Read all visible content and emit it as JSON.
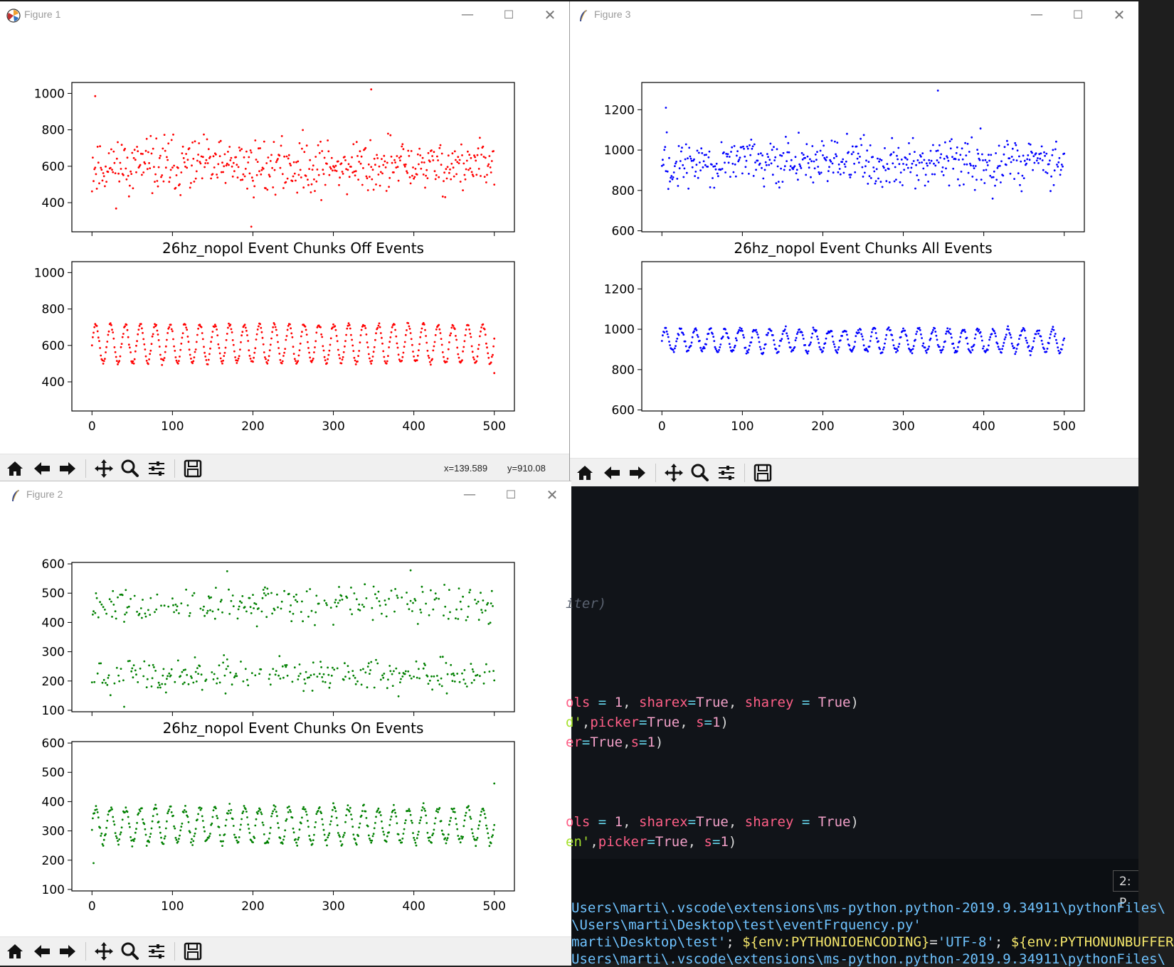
{
  "figures": [
    {
      "id": "fig1",
      "window_title": "Figure 1",
      "title_icon": "matplotlib-logo-icon",
      "color": "#ff0000",
      "plot_title": "26hz_nopol Event Chunks Off Events",
      "coords": {
        "x": "x=139.589",
        "y": "y=910.08"
      },
      "chart_data": {
        "type": "scatter",
        "title": "26hz_nopol Event Chunks Off Events",
        "xlim": [
          -25,
          525
        ],
        "xticks": [
          0,
          100,
          200,
          300,
          400,
          500
        ],
        "subplots": [
          {
            "name": "raw",
            "ylim": [
              240,
              1060
            ],
            "yticks": [
              400,
              600,
              800,
              1000
            ],
            "generator": {
              "kind": "noise",
              "n": 500,
              "center": 600,
              "spread": 150,
              "min": 300,
              "max": 990,
              "seed": 11
            },
            "highlights": [
              {
                "x": 347,
                "y": 1022
              },
              {
                "x": 4,
                "y": 985
              },
              {
                "x": 198,
                "y": 268
              }
            ]
          },
          {
            "name": "smoothed",
            "ylim": [
              240,
              1060
            ],
            "yticks": [
              400,
              600,
              800,
              1000
            ],
            "generator": {
              "kind": "wave",
              "n": 500,
              "center": 610,
              "amp": 105,
              "period": 18.5,
              "jitter": 12,
              "seed": 21
            },
            "highlights": [
              {
                "x": 500,
                "y": 448
              }
            ]
          }
        ]
      }
    },
    {
      "id": "fig3",
      "window_title": "Figure 3",
      "title_icon": "tk-feather-icon",
      "color": "#0000ff",
      "plot_title": "26hz_nopol Event Chunks All Events",
      "chart_data": {
        "type": "scatter",
        "title": "26hz_nopol Event Chunks All Events",
        "xlim": [
          -25,
          525
        ],
        "xticks": [
          0,
          100,
          200,
          300,
          400,
          500
        ],
        "subplots": [
          {
            "name": "raw",
            "ylim": [
              595,
              1335
            ],
            "yticks": [
              600,
              800,
              1000,
              1200
            ],
            "generator": {
              "kind": "noise",
              "n": 500,
              "center": 940,
              "spread": 120,
              "min": 620,
              "max": 1250,
              "seed": 33
            },
            "highlights": [
              {
                "x": 343,
                "y": 1295
              },
              {
                "x": 5,
                "y": 1210
              }
            ]
          },
          {
            "name": "smoothed",
            "ylim": [
              595,
              1335
            ],
            "yticks": [
              600,
              800,
              1000,
              1200
            ],
            "generator": {
              "kind": "wave",
              "n": 500,
              "center": 945,
              "amp": 55,
              "period": 18.5,
              "jitter": 15,
              "seed": 44
            },
            "highlights": []
          }
        ]
      }
    },
    {
      "id": "fig2",
      "window_title": "Figure 2",
      "title_icon": "tk-feather-icon",
      "color": "#008000",
      "plot_title": "26hz_nopol Event Chunks On Events",
      "chart_data": {
        "type": "scatter",
        "title": "26hz_nopol Event Chunks On Events",
        "xlim": [
          -25,
          525
        ],
        "xticks": [
          0,
          100,
          200,
          300,
          400,
          500
        ],
        "subplots": [
          {
            "name": "raw",
            "ylim": [
              95,
              605
            ],
            "yticks": [
              100,
              200,
              300,
              400,
              500,
              600
            ],
            "generator": {
              "kind": "bimodal",
              "n": 500,
              "low": 220,
              "high": 460,
              "spread": 55,
              "min": 115,
              "max": 560,
              "seed": 55
            },
            "highlights": [
              {
                "x": 168,
                "y": 575
              },
              {
                "x": 396,
                "y": 578
              },
              {
                "x": 40,
                "y": 112
              }
            ]
          },
          {
            "name": "smoothed",
            "ylim": [
              95,
              605
            ],
            "yticks": [
              100,
              200,
              300,
              400,
              500,
              600
            ],
            "generator": {
              "kind": "wave",
              "n": 500,
              "center": 320,
              "amp": 60,
              "period": 18.5,
              "jitter": 14,
              "seed": 66
            },
            "highlights": [
              {
                "x": 500,
                "y": 462
              },
              {
                "x": 2,
                "y": 190
              }
            ]
          }
        ]
      }
    }
  ],
  "editor": {
    "lines": [
      {
        "parts": [
          {
            "t": "iter)",
            "c": "cm"
          }
        ]
      },
      {
        "parts": [
          {
            "t": "ols ",
            "c": "kw"
          },
          {
            "t": "= ",
            "c": "op"
          },
          {
            "t": "1",
            "c": "val"
          },
          {
            "t": ", ",
            "c": ""
          },
          {
            "t": "sharex",
            "c": "kw"
          },
          {
            "t": "=",
            "c": "op"
          },
          {
            "t": "True",
            "c": "val"
          },
          {
            "t": ", ",
            "c": ""
          },
          {
            "t": "sharey ",
            "c": "kw"
          },
          {
            "t": "= ",
            "c": "op"
          },
          {
            "t": "True",
            "c": "val"
          },
          {
            "t": ")",
            "c": ""
          }
        ]
      },
      {
        "parts": [
          {
            "t": "d'",
            "c": "strg"
          },
          {
            "t": ",",
            "c": ""
          },
          {
            "t": "picker",
            "c": "kw"
          },
          {
            "t": "=",
            "c": "op"
          },
          {
            "t": "True",
            "c": "val"
          },
          {
            "t": ", ",
            "c": ""
          },
          {
            "t": "s",
            "c": "kw"
          },
          {
            "t": "=",
            "c": "op"
          },
          {
            "t": "1",
            "c": "val"
          },
          {
            "t": ")",
            "c": ""
          }
        ]
      },
      {
        "parts": [
          {
            "t": "er",
            "c": "kw"
          },
          {
            "t": "=",
            "c": "op"
          },
          {
            "t": "True",
            "c": "val"
          },
          {
            "t": ",",
            "c": ""
          },
          {
            "t": "s",
            "c": "kw"
          },
          {
            "t": "=",
            "c": "op"
          },
          {
            "t": "1",
            "c": "val"
          },
          {
            "t": ")",
            "c": ""
          }
        ]
      },
      {
        "parts": [
          {
            "t": "ols ",
            "c": "kw"
          },
          {
            "t": "= ",
            "c": "op"
          },
          {
            "t": "1",
            "c": "val"
          },
          {
            "t": ", ",
            "c": ""
          },
          {
            "t": "sharex",
            "c": "kw"
          },
          {
            "t": "=",
            "c": "op"
          },
          {
            "t": "True",
            "c": "val"
          },
          {
            "t": ", ",
            "c": ""
          },
          {
            "t": "sharey ",
            "c": "kw"
          },
          {
            "t": "= ",
            "c": "op"
          },
          {
            "t": "True",
            "c": "val"
          },
          {
            "t": ")",
            "c": ""
          }
        ]
      },
      {
        "parts": [
          {
            "t": "en'",
            "c": "strg"
          },
          {
            "t": ",",
            "c": ""
          },
          {
            "t": "picker",
            "c": "kw"
          },
          {
            "t": "=",
            "c": "op"
          },
          {
            "t": "True",
            "c": "val"
          },
          {
            "t": ", ",
            "c": ""
          },
          {
            "t": "s",
            "c": "kw"
          },
          {
            "t": "=",
            "c": "op"
          },
          {
            "t": "1",
            "c": "val"
          },
          {
            "t": ")",
            "c": ""
          }
        ]
      }
    ]
  },
  "terminal": {
    "tab_label": "2: P",
    "lines": [
      {
        "parts": [
          {
            "t": "Users\\marti\\.vscode\\extensions\\ms-python.python-2019.9.34911\\pythonFiles\\",
            "c": "#6fc3ff"
          }
        ]
      },
      {
        "parts": [
          {
            "t": "\\Users\\marti\\Desktop\\test\\eventFrquency.py'",
            "c": "#6fc3ff"
          }
        ]
      },
      {
        "parts": [
          {
            "t": "marti\\Desktop\\test'",
            "c": "#6fc3ff"
          },
          {
            "t": "; ",
            "c": "#e0e0e0"
          },
          {
            "t": "${env:PYTHONIOENCODING}",
            "c": "#f5e76b"
          },
          {
            "t": "=",
            "c": "#e0e0e0"
          },
          {
            "t": "'UTF-8'",
            "c": "#6fc3ff"
          },
          {
            "t": "; ",
            "c": "#e0e0e0"
          },
          {
            "t": "${env:PYTHONUNBUFFER",
            "c": "#f5e76b"
          }
        ]
      },
      {
        "parts": [
          {
            "t": "Users\\marti\\.vscode\\extensions\\ms-python.python-2019.9.34911\\pythonFiles\\",
            "c": "#6fc3ff"
          }
        ]
      }
    ]
  },
  "toolbar_icons": [
    "home-icon",
    "back-arrow-icon",
    "forward-arrow-icon",
    "pan-icon",
    "zoom-icon",
    "configure-subplots-icon",
    "save-icon"
  ]
}
